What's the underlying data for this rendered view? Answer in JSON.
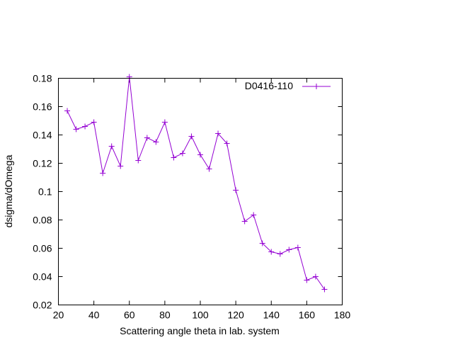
{
  "chart_data": {
    "type": "line",
    "xlabel": "Scattering angle theta in lab. system",
    "ylabel": "dsigma/dOmega",
    "xlim": [
      20,
      180
    ],
    "ylim": [
      0.02,
      0.18
    ],
    "xticks": [
      20,
      40,
      60,
      80,
      100,
      120,
      140,
      160,
      180
    ],
    "yticks": [
      0.02,
      0.04,
      0.06,
      0.08,
      0.1,
      0.12,
      0.14,
      0.16,
      0.18
    ],
    "xtick_labels": [
      "20",
      "40",
      "60",
      "80",
      "100",
      "120",
      "140",
      "160",
      "180"
    ],
    "ytick_labels": [
      "0.02",
      "0.04",
      "0.06",
      "0.08",
      "0.1",
      "0.12",
      "0.14",
      "0.16",
      "0.18"
    ],
    "grid": false,
    "legend_position": "top-right",
    "marker": "plus",
    "series": [
      {
        "name": "D0416-110",
        "color": "#9400d3",
        "x": [
          25,
          30,
          35,
          40,
          45,
          50,
          55,
          60,
          65,
          70,
          75,
          80,
          85,
          90,
          95,
          100,
          105,
          110,
          115,
          120,
          125,
          130,
          135,
          140,
          145,
          150,
          155,
          160,
          165,
          170
        ],
        "y": [
          0.157,
          0.144,
          0.146,
          0.149,
          0.113,
          0.132,
          0.118,
          0.181,
          0.122,
          0.138,
          0.135,
          0.149,
          0.124,
          0.127,
          0.139,
          0.126,
          0.116,
          0.141,
          0.134,
          0.101,
          0.079,
          0.0835,
          0.0635,
          0.0575,
          0.056,
          0.059,
          0.0605,
          0.0375,
          0.04,
          0.031
        ]
      }
    ]
  }
}
